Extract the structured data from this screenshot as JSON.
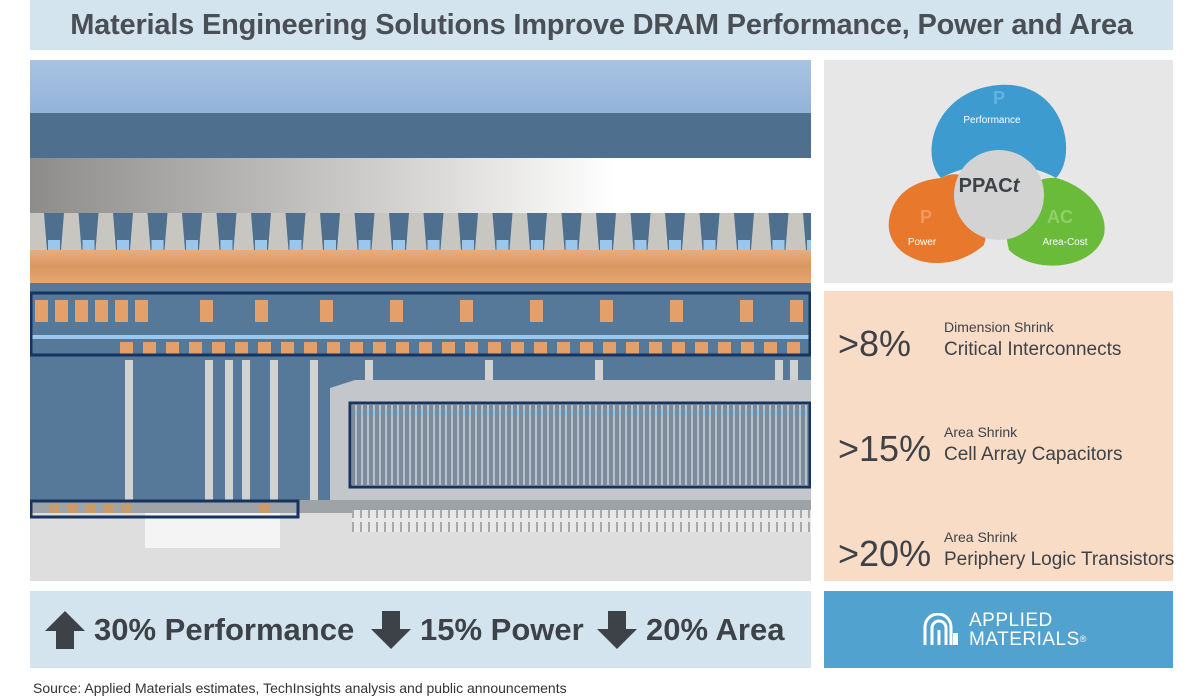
{
  "header": {
    "title": "Materials Engineering Solutions Improve DRAM Performance, Power and Area"
  },
  "ppact": {
    "center": "PPAC",
    "center_suffix": "t",
    "performance": {
      "letter": "P",
      "label": "Performance",
      "color": "#3d9bd0"
    },
    "power": {
      "letter": "P",
      "label": "Power",
      "color": "#e8782b"
    },
    "area_cost": {
      "letter": "AC",
      "label": "Area-Cost",
      "color": "#6bbb3b"
    }
  },
  "stats": [
    {
      "percent": ">8%",
      "kind": "Dimension Shrink",
      "target": "Critical Interconnects"
    },
    {
      "percent": ">15%",
      "kind": "Area Shrink",
      "target": "Cell Array Capacitors"
    },
    {
      "percent": ">20%",
      "kind": "Area Shrink",
      "target": "Periphery Logic Transistors"
    }
  ],
  "metrics": [
    {
      "direction": "up",
      "icon": "arrow-up-icon",
      "text": "30% Performance"
    },
    {
      "direction": "down",
      "icon": "arrow-down-icon",
      "text": "15% Power"
    },
    {
      "direction": "down",
      "icon": "arrow-down-icon",
      "text": "20% Area"
    }
  ],
  "logo": {
    "line1": "APPLIED",
    "line2": "MATERIALS",
    "mark": "®",
    "icon": "applied-materials-logo-icon"
  },
  "source": "Source: Applied Materials estimates, TechInsights analysis and public announcements",
  "colors": {
    "title_bg": "#d3e4ee",
    "copper": "#e3a06a",
    "slate": "#56799a",
    "highlight": "#16345f",
    "stats_bg": "#f9dcc6",
    "logo_bg": "#51a2cf"
  }
}
